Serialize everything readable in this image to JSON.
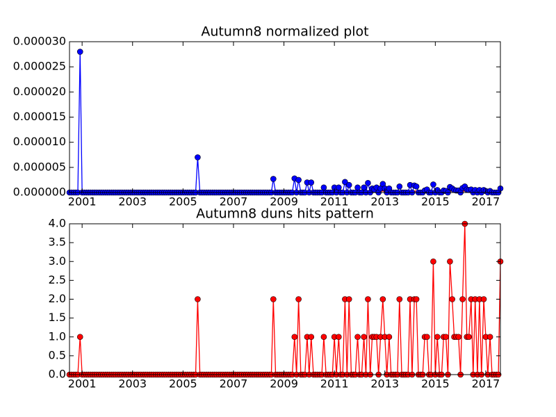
{
  "chart_data": [
    {
      "type": "line",
      "title": "Autumn8 normalized plot",
      "x": [
        2000.5,
        2000.58,
        2000.67,
        2000.75,
        2000.83,
        2000.92,
        2001,
        2001.08,
        2001.17,
        2001.25,
        2001.33,
        2001.42,
        2001.5,
        2001.58,
        2001.67,
        2001.75,
        2001.83,
        2001.92,
        2002,
        2002.08,
        2002.17,
        2002.25,
        2002.33,
        2002.42,
        2002.5,
        2002.58,
        2002.67,
        2002.75,
        2002.83,
        2002.92,
        2003,
        2003.08,
        2003.17,
        2003.25,
        2003.33,
        2003.42,
        2003.5,
        2003.58,
        2003.67,
        2003.75,
        2003.83,
        2003.92,
        2004,
        2004.08,
        2004.17,
        2004.25,
        2004.33,
        2004.42,
        2004.5,
        2004.58,
        2004.67,
        2004.75,
        2004.83,
        2004.92,
        2005,
        2005.08,
        2005.17,
        2005.25,
        2005.33,
        2005.42,
        2005.5,
        2005.58,
        2005.67,
        2005.75,
        2005.83,
        2005.92,
        2006,
        2006.08,
        2006.17,
        2006.25,
        2006.33,
        2006.42,
        2006.5,
        2006.58,
        2006.67,
        2006.75,
        2006.83,
        2006.92,
        2007,
        2007.08,
        2007.17,
        2007.25,
        2007.33,
        2007.42,
        2007.5,
        2007.58,
        2007.67,
        2007.75,
        2007.83,
        2007.92,
        2008,
        2008.08,
        2008.17,
        2008.25,
        2008.33,
        2008.42,
        2008.5,
        2008.58,
        2008.67,
        2008.75,
        2008.83,
        2008.92,
        2009,
        2009.08,
        2009.17,
        2009.25,
        2009.33,
        2009.42,
        2009.5,
        2009.58,
        2009.67,
        2009.75,
        2009.83,
        2009.92,
        2010,
        2010.08,
        2010.17,
        2010.25,
        2010.33,
        2010.42,
        2010.5,
        2010.58,
        2010.67,
        2010.75,
        2010.83,
        2010.92,
        2011,
        2011.08,
        2011.17,
        2011.25,
        2011.33,
        2011.42,
        2011.5,
        2011.58,
        2011.67,
        2011.75,
        2011.83,
        2011.92,
        2012,
        2012.08,
        2012.17,
        2012.25,
        2012.33,
        2012.42,
        2012.5,
        2012.58,
        2012.67,
        2012.75,
        2012.83,
        2012.92,
        2013,
        2013.08,
        2013.17,
        2013.25,
        2013.33,
        2013.42,
        2013.5,
        2013.58,
        2013.67,
        2013.75,
        2013.83,
        2013.92,
        2014,
        2014.08,
        2014.17,
        2014.25,
        2014.33,
        2014.42,
        2014.5,
        2014.58,
        2014.67,
        2014.75,
        2014.83,
        2014.92,
        2015,
        2015.08,
        2015.17,
        2015.25,
        2015.33,
        2015.42,
        2015.5,
        2015.58,
        2015.67,
        2015.75,
        2015.83,
        2015.92,
        2016,
        2016.08,
        2016.17,
        2016.25,
        2016.33,
        2016.42,
        2016.5,
        2016.58,
        2016.67,
        2016.75,
        2016.83,
        2016.92,
        2017,
        2017.08,
        2017.17,
        2017.25,
        2017.33,
        2017.42,
        2017.5,
        2017.58
      ],
      "series": [
        {
          "color": "#0000ff",
          "values": [
            0,
            0,
            0,
            0,
            0,
            2.8e-05,
            0,
            0,
            0,
            0,
            0,
            0,
            0,
            0,
            0,
            0,
            0,
            0,
            0,
            0,
            0,
            0,
            0,
            0,
            0,
            0,
            0,
            0,
            0,
            0,
            0,
            0,
            0,
            0,
            0,
            0,
            0,
            0,
            0,
            0,
            0,
            0,
            0,
            0,
            0,
            0,
            0,
            0,
            0,
            0,
            0,
            0,
            0,
            0,
            0,
            0,
            0,
            0,
            0,
            0,
            0,
            7e-06,
            0,
            0,
            0,
            0,
            0,
            0,
            0,
            0,
            0,
            0,
            0,
            0,
            0,
            0,
            0,
            0,
            0,
            0,
            0,
            0,
            0,
            0,
            0,
            0,
            0,
            0,
            0,
            0,
            0,
            0,
            0,
            0,
            0,
            0,
            0,
            2.7e-06,
            0,
            0,
            0,
            0,
            0,
            0,
            0,
            0,
            0,
            2.8e-06,
            0,
            2.5e-06,
            0,
            0,
            0,
            2e-06,
            0,
            2e-06,
            0,
            0,
            0,
            0,
            0,
            1e-06,
            0,
            0,
            0,
            0,
            1e-06,
            0,
            1e-06,
            0,
            0,
            2.1e-06,
            0,
            1.5e-06,
            0,
            0,
            0,
            1e-06,
            0,
            0,
            1e-06,
            0,
            1.9e-06,
            0,
            8e-07,
            6e-07,
            1e-06,
            0,
            8e-07,
            1.7e-06,
            8e-07,
            0,
            8e-07,
            0,
            0,
            0,
            0,
            1.2e-06,
            0,
            0,
            0,
            0,
            1.5e-06,
            0,
            1.4e-06,
            1.2e-06,
            0,
            0,
            0,
            4e-07,
            6e-07,
            0,
            0,
            1.6e-06,
            0,
            5e-07,
            0,
            0,
            4e-07,
            3e-07,
            0,
            1.1e-06,
            8e-07,
            5e-07,
            4e-07,
            4e-07,
            0,
            9e-07,
            1.2e-06,
            6e-07,
            5e-07,
            6e-07,
            0,
            5e-07,
            0,
            5e-07,
            0,
            5e-07,
            3e-07,
            0,
            3e-07,
            0,
            0,
            0,
            0,
            8e-07
          ]
        }
      ],
      "reference_line": {
        "value": 3e-07,
        "color": "#ff0000"
      },
      "xlim": [
        2000.5,
        2017.58
      ],
      "xticks": [
        2001,
        2003,
        2005,
        2007,
        2009,
        2011,
        2013,
        2015,
        2017
      ],
      "ylim": [
        0,
        3e-05
      ],
      "yticks": [
        {
          "value": 0,
          "label": "0.000000"
        },
        {
          "value": 5e-06,
          "label": "0.000005"
        },
        {
          "value": 1e-05,
          "label": "0.000010"
        },
        {
          "value": 1.5e-05,
          "label": "0.000015"
        },
        {
          "value": 2e-05,
          "label": "0.000020"
        },
        {
          "value": 2.5e-05,
          "label": "0.000025"
        },
        {
          "value": 3e-05,
          "label": "0.000030"
        }
      ]
    },
    {
      "type": "line",
      "title": "Autumn8 duns hits pattern",
      "x": [
        2000.5,
        2000.58,
        2000.67,
        2000.75,
        2000.83,
        2000.92,
        2001,
        2001.08,
        2001.17,
        2001.25,
        2001.33,
        2001.42,
        2001.5,
        2001.58,
        2001.67,
        2001.75,
        2001.83,
        2001.92,
        2002,
        2002.08,
        2002.17,
        2002.25,
        2002.33,
        2002.42,
        2002.5,
        2002.58,
        2002.67,
        2002.75,
        2002.83,
        2002.92,
        2003,
        2003.08,
        2003.17,
        2003.25,
        2003.33,
        2003.42,
        2003.5,
        2003.58,
        2003.67,
        2003.75,
        2003.83,
        2003.92,
        2004,
        2004.08,
        2004.17,
        2004.25,
        2004.33,
        2004.42,
        2004.5,
        2004.58,
        2004.67,
        2004.75,
        2004.83,
        2004.92,
        2005,
        2005.08,
        2005.17,
        2005.25,
        2005.33,
        2005.42,
        2005.5,
        2005.58,
        2005.67,
        2005.75,
        2005.83,
        2005.92,
        2006,
        2006.08,
        2006.17,
        2006.25,
        2006.33,
        2006.42,
        2006.5,
        2006.58,
        2006.67,
        2006.75,
        2006.83,
        2006.92,
        2007,
        2007.08,
        2007.17,
        2007.25,
        2007.33,
        2007.42,
        2007.5,
        2007.58,
        2007.67,
        2007.75,
        2007.83,
        2007.92,
        2008,
        2008.08,
        2008.17,
        2008.25,
        2008.33,
        2008.42,
        2008.5,
        2008.58,
        2008.67,
        2008.75,
        2008.83,
        2008.92,
        2009,
        2009.08,
        2009.17,
        2009.25,
        2009.33,
        2009.42,
        2009.5,
        2009.58,
        2009.67,
        2009.75,
        2009.83,
        2009.92,
        2010,
        2010.08,
        2010.17,
        2010.25,
        2010.33,
        2010.42,
        2010.5,
        2010.58,
        2010.67,
        2010.75,
        2010.83,
        2010.92,
        2011,
        2011.08,
        2011.17,
        2011.25,
        2011.33,
        2011.42,
        2011.5,
        2011.58,
        2011.67,
        2011.75,
        2011.83,
        2011.92,
        2012,
        2012.08,
        2012.17,
        2012.25,
        2012.33,
        2012.42,
        2012.5,
        2012.58,
        2012.67,
        2012.75,
        2012.83,
        2012.92,
        2013,
        2013.08,
        2013.17,
        2013.25,
        2013.33,
        2013.42,
        2013.5,
        2013.58,
        2013.67,
        2013.75,
        2013.83,
        2013.92,
        2014,
        2014.08,
        2014.17,
        2014.25,
        2014.33,
        2014.42,
        2014.5,
        2014.58,
        2014.67,
        2014.75,
        2014.83,
        2014.92,
        2015,
        2015.08,
        2015.17,
        2015.25,
        2015.33,
        2015.42,
        2015.5,
        2015.58,
        2015.67,
        2015.75,
        2015.83,
        2015.92,
        2016,
        2016.08,
        2016.17,
        2016.25,
        2016.33,
        2016.42,
        2016.5,
        2016.58,
        2016.67,
        2016.75,
        2016.83,
        2016.92,
        2017,
        2017.08,
        2017.17,
        2017.25,
        2017.33,
        2017.42,
        2017.5,
        2017.58
      ],
      "series": [
        {
          "color": "#ff0000",
          "values": [
            0,
            0,
            0,
            0,
            0,
            1,
            0,
            0,
            0,
            0,
            0,
            0,
            0,
            0,
            0,
            0,
            0,
            0,
            0,
            0,
            0,
            0,
            0,
            0,
            0,
            0,
            0,
            0,
            0,
            0,
            0,
            0,
            0,
            0,
            0,
            0,
            0,
            0,
            0,
            0,
            0,
            0,
            0,
            0,
            0,
            0,
            0,
            0,
            0,
            0,
            0,
            0,
            0,
            0,
            0,
            0,
            0,
            0,
            0,
            0,
            0,
            2,
            0,
            0,
            0,
            0,
            0,
            0,
            0,
            0,
            0,
            0,
            0,
            0,
            0,
            0,
            0,
            0,
            0,
            0,
            0,
            0,
            0,
            0,
            0,
            0,
            0,
            0,
            0,
            0,
            0,
            0,
            0,
            0,
            0,
            0,
            0,
            2,
            0,
            0,
            0,
            0,
            0,
            0,
            0,
            0,
            0,
            1,
            0,
            2,
            0,
            0,
            0,
            1,
            0,
            1,
            0,
            0,
            0,
            0,
            0,
            1,
            0,
            0,
            0,
            0,
            1,
            0,
            1,
            0,
            0,
            2,
            0,
            2,
            0,
            0,
            0,
            1,
            0,
            0,
            1,
            0,
            2,
            0,
            1,
            1,
            1,
            0,
            1,
            2,
            1,
            0,
            1,
            0,
            0,
            0,
            0,
            2,
            0,
            0,
            0,
            0,
            2,
            0,
            2,
            2,
            0,
            0,
            0,
            1,
            1,
            0,
            0,
            3,
            0,
            1,
            0,
            0,
            1,
            1,
            0,
            3,
            2,
            1,
            1,
            1,
            0,
            2,
            4,
            1,
            1,
            2,
            0,
            2,
            0,
            2,
            0,
            2,
            1,
            0,
            1,
            0,
            0,
            0,
            0,
            3
          ]
        }
      ],
      "xlim": [
        2000.5,
        2017.58
      ],
      "xticks": [
        2001,
        2003,
        2005,
        2007,
        2009,
        2011,
        2013,
        2015,
        2017
      ],
      "ylim": [
        0,
        4
      ],
      "yticks": [
        {
          "value": 0,
          "label": "0.0"
        },
        {
          "value": 0.5,
          "label": "0.5"
        },
        {
          "value": 1,
          "label": "1.0"
        },
        {
          "value": 1.5,
          "label": "1.5"
        },
        {
          "value": 2,
          "label": "2.0"
        },
        {
          "value": 2.5,
          "label": "2.5"
        },
        {
          "value": 3,
          "label": "3.0"
        },
        {
          "value": 3.5,
          "label": "3.5"
        },
        {
          "value": 4,
          "label": "4.0"
        }
      ]
    }
  ]
}
